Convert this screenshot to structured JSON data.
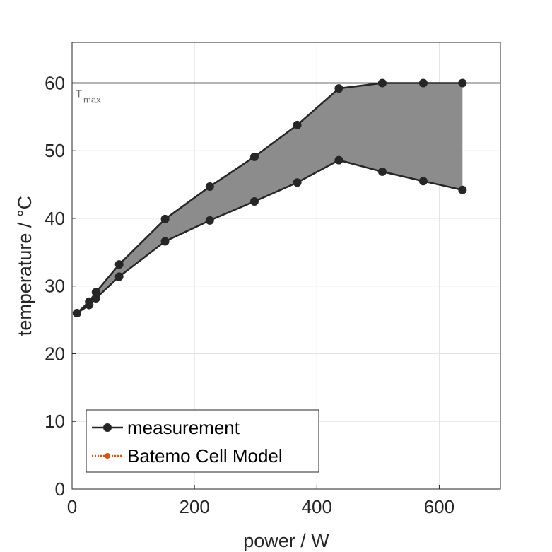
{
  "chart_data": {
    "type": "line",
    "title": "",
    "xlabel": "power / W",
    "ylabel": "temperature / °C",
    "xlim": [
      0,
      700
    ],
    "ylim": [
      0,
      66
    ],
    "xticks": [
      0,
      200,
      400,
      600
    ],
    "yticks": [
      0,
      10,
      20,
      30,
      40,
      50,
      60
    ],
    "grid": true,
    "legend_position": "bottom-left",
    "reference_line": {
      "y": 60,
      "label_main": "T",
      "label_sub": "max",
      "color": "#6b6b6b"
    },
    "band_fill_color": "#8c8c8c",
    "series": [
      {
        "name": "measurement",
        "color": "#262626",
        "style": "solid-markers",
        "upper": {
          "x": [
            8,
            28,
            39,
            77,
            152,
            225,
            298,
            368,
            436,
            507,
            574,
            638
          ],
          "y": [
            26,
            27.7,
            29.1,
            33.2,
            39.9,
            44.7,
            49.1,
            53.8,
            59.2,
            60,
            60,
            60
          ]
        },
        "lower": {
          "x": [
            8,
            28,
            39,
            77,
            152,
            225,
            298,
            368,
            436,
            507,
            574,
            638
          ],
          "y": [
            26,
            27.2,
            28.2,
            31.4,
            36.6,
            39.7,
            42.5,
            45.3,
            48.6,
            46.9,
            45.5,
            44.2
          ]
        }
      },
      {
        "name": "Batemo Cell Model",
        "color": "#d95319",
        "style": "dotted-markers",
        "upper": {
          "x": [],
          "y": []
        },
        "lower": {
          "x": [],
          "y": []
        }
      }
    ]
  }
}
